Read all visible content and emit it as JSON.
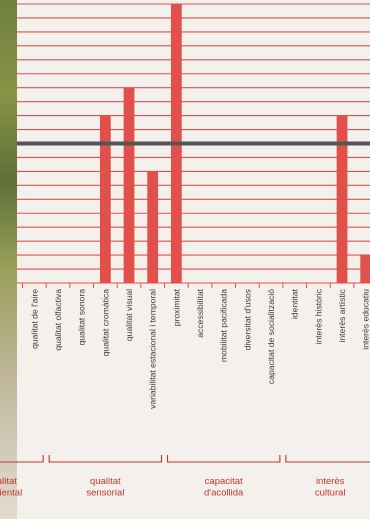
{
  "chart_data": {
    "type": "bar",
    "categories": [
      "qualitat de l'aire",
      "qualitat olfactiva",
      "qualitat sonora",
      "qualitat cromàtica",
      "qualitat visual",
      "variabilitat estacional i temporal",
      "proximitat",
      "accessibilitat",
      "mobilitat pacificada",
      "diversitat d'usos",
      "capacitat de socialització",
      "identitat",
      "interès històric",
      "interès artístic",
      "interès educatiu"
    ],
    "values": [
      0,
      0,
      0,
      6,
      7,
      4,
      10,
      0,
      0,
      0,
      0,
      0,
      0,
      6,
      1
    ],
    "ylim": [
      0,
      10
    ],
    "reference_value": 5,
    "grid": true,
    "groups": [
      {
        "label_lines": [
          "qualitat",
          "ambiental"
        ],
        "start": 0,
        "end": 0
      },
      {
        "label_lines": [
          "qualitat",
          "sensorial"
        ],
        "start": 1,
        "end": 5
      },
      {
        "label_lines": [
          "capacitat",
          "d'acollida"
        ],
        "start": 6,
        "end": 10
      },
      {
        "label_lines": [
          "interès",
          "cultural"
        ],
        "start": 11,
        "end": 14
      }
    ],
    "colors": {
      "bar": "#e2504b",
      "grid": "#e2504b",
      "reference": "#555555",
      "group_label": "#c0352e",
      "bracket": "#c0352e"
    }
  }
}
